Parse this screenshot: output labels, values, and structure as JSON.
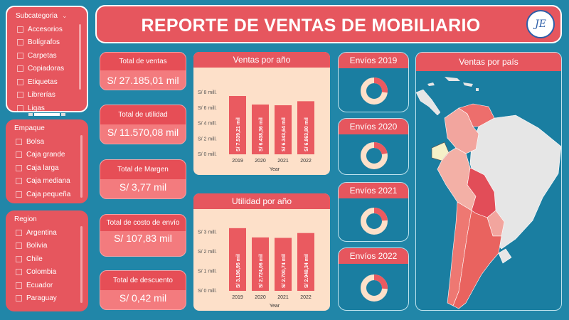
{
  "header": {
    "title": "REPORTE DE VENTAS DE MOBILIARIO",
    "logo_text": "JE"
  },
  "slicers": {
    "subcategoria": {
      "title": "Subcategoria",
      "items": [
        "Accesorios",
        "Bolígrafos",
        "Carpetas",
        "Copiadoras",
        "Etiquetas",
        "Librerías",
        "Ligas"
      ]
    },
    "empaque": {
      "title": "Empaque",
      "items": [
        "Bolsa",
        "Caja grande",
        "Caja larga",
        "Caja mediana",
        "Caja pequeña"
      ]
    },
    "region": {
      "title": "Region",
      "items": [
        "Argentina",
        "Bolivia",
        "Chile",
        "Colombia",
        "Ecuador",
        "Paraguay"
      ]
    }
  },
  "kpis": [
    {
      "label": "Total de ventas",
      "value": "S/ 27.185,01 mil"
    },
    {
      "label": "Total de utilidad",
      "value": "S/ 11.570,08 mil"
    },
    {
      "label": "Total de Margen",
      "value": "S/ 3,77 mil"
    },
    {
      "label": "Total de costo de envío",
      "value": "S/ 107,83 mil"
    },
    {
      "label": "Total de descuento",
      "value": "S/ 0,42 mil"
    }
  ],
  "chart_data": [
    {
      "type": "bar",
      "title": "Ventas por año",
      "xlabel": "Year",
      "ylabel": "",
      "categories": [
        "2019",
        "2020",
        "2021",
        "2022"
      ],
      "values": [
        7539.21,
        6438.36,
        6343.64,
        6863.8
      ],
      "data_labels": [
        "S/ 7.539,21 mil",
        "S/ 6.438,36 mil",
        "S/ 6.343,64 mil",
        "S/ 6.863,80 mil"
      ],
      "y_ticks": [
        0,
        2000,
        4000,
        6000,
        8000
      ],
      "y_tick_labels": [
        "S/ 0 mill.",
        "S/ 2 mill.",
        "S/ 4 mill.",
        "S/ 6 mill.",
        "S/ 8 mill."
      ],
      "ylim": [
        0,
        8000
      ]
    },
    {
      "type": "bar",
      "title": "Utilidad por año",
      "xlabel": "Year",
      "ylabel": "",
      "categories": [
        "2019",
        "2020",
        "2021",
        "2022"
      ],
      "values": [
        3196.95,
        2724.06,
        2700.74,
        2948.34
      ],
      "data_labels": [
        "S/ 3.196,95 mil",
        "S/ 2.724,06 mil",
        "S/ 2.700,74 mil",
        "S/ 2.948,34 mil"
      ],
      "y_ticks": [
        0,
        1000,
        2000,
        3000
      ],
      "y_tick_labels": [
        "S/ 0 mill.",
        "S/ 1 mill.",
        "S/ 2 mill.",
        "S/ 3 mill."
      ],
      "ylim": [
        0,
        3300
      ]
    }
  ],
  "envios": [
    {
      "title": "Envíos 2019",
      "share": 0.27
    },
    {
      "title": "Envíos 2020",
      "share": 0.22
    },
    {
      "title": "Envíos 2021",
      "share": 0.24
    },
    {
      "title": "Envíos 2022",
      "share": 0.26
    }
  ],
  "map": {
    "title": "Ventas por país"
  },
  "colors": {
    "background": "#2186a8",
    "accent": "#e6565e",
    "bar": "#ea5a60",
    "panel": "#fde0c9",
    "donut_track": "#fde0c9",
    "donut_fill": "#ea5a60",
    "map_land": "#e6e6e6"
  }
}
